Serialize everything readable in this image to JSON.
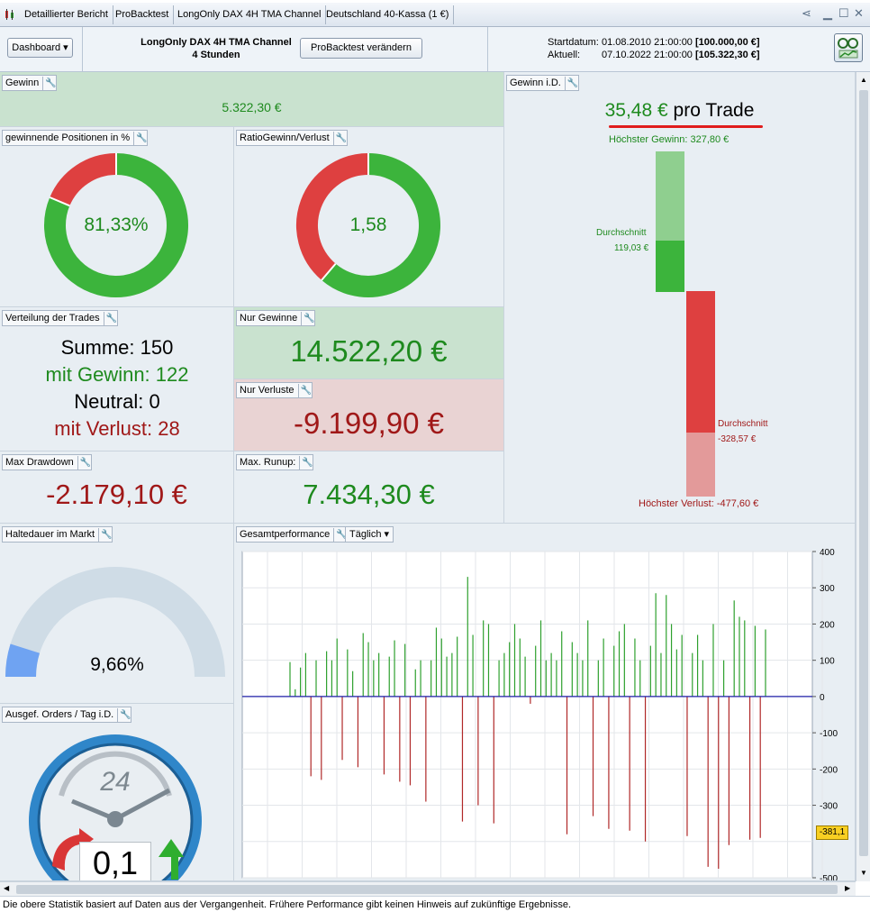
{
  "tabs": [
    "Detaillierter Bericht",
    "ProBacktest",
    "LongOnly DAX 4H TMA Channel",
    "Deutschland 40-Kassa (1 €)"
  ],
  "header": {
    "dashboard_label": "Dashboard",
    "strategy_name": "LongOnly DAX 4H TMA Channel",
    "timeframe": "4 Stunden",
    "modify_label": "ProBacktest verändern",
    "start_label": "Startdatum:",
    "start_date": "01.08.2010 21:00:00",
    "start_capital": "[100.000,00 €]",
    "current_label": "Aktuell:",
    "current_date": "07.10.2022 21:00:00",
    "current_capital": "[105.322,30 €]"
  },
  "gewinn": {
    "title": "Gewinn",
    "value": "5.322,30 €"
  },
  "win_pct": {
    "title": "gewinnende Positionen in %",
    "value": "81,33%",
    "fraction": 0.8133
  },
  "ratio": {
    "title": "RatioGewinn/Verlust",
    "value": "1,58",
    "fraction": 0.6124
  },
  "gewinn_id": {
    "title": "Gewinn i.D.",
    "per_trade_value": "35,48 €",
    "per_trade_label": "pro Trade",
    "max_gain": "Höchster Gewinn: 327,80 €",
    "avg_label": "Durchschnitt",
    "avg_gain": "119,03 €",
    "avg_loss": "-328,57 €",
    "max_loss": "Höchster Verlust: -477,60 €"
  },
  "verteilung": {
    "title": "Verteilung der Trades",
    "sum": "Summe: 150",
    "win": "mit Gewinn: 122",
    "neutral": "Neutral: 0",
    "loss": "mit Verlust: 28"
  },
  "nur_gewinne": {
    "title": "Nur Gewinne",
    "value": "14.522,20 €"
  },
  "nur_verluste": {
    "title": "Nur Verluste",
    "value": "-9.199,90 €"
  },
  "max_drawdown": {
    "title": "Max Drawdown",
    "value": "-2.179,10 €"
  },
  "max_runup": {
    "title": "Max. Runup:",
    "value": "7.434,30 €"
  },
  "haltedauer": {
    "title": "Haltedauer im Markt",
    "value": "9,66%",
    "fraction": 0.0966
  },
  "orders": {
    "title": "Ausgef. Orders / Tag i.D.",
    "value": "0,1",
    "dial_number": "24"
  },
  "performance": {
    "title": "Gesamtperformance",
    "period": "Täglich",
    "current_marker": "-381,1"
  },
  "chart_data": {
    "type": "bar",
    "title": "Gesamtperformance",
    "ylim": [
      -500,
      400
    ],
    "yticks": [
      400,
      300,
      200,
      100,
      0,
      -100,
      -200,
      -300,
      -500
    ],
    "ytick_labels": [
      "400",
      "300",
      "200",
      "100",
      "0",
      "-100",
      "-200",
      "-300",
      "-500"
    ],
    "values": [
      95,
      20,
      80,
      120,
      -220,
      100,
      -230,
      125,
      100,
      160,
      -175,
      130,
      70,
      -195,
      175,
      150,
      100,
      120,
      -215,
      110,
      155,
      -235,
      145,
      -245,
      75,
      100,
      -290,
      100,
      190,
      160,
      110,
      120,
      165,
      -345,
      330,
      170,
      -300,
      210,
      200,
      -350,
      100,
      120,
      150,
      200,
      160,
      110,
      -20,
      140,
      210,
      100,
      120,
      100,
      180,
      -380,
      150,
      120,
      100,
      210,
      -330,
      100,
      160,
      -365,
      140,
      180,
      200,
      -370,
      160,
      100,
      -400,
      140,
      285,
      120,
      280,
      200,
      130,
      170,
      -385,
      120,
      170,
      100,
      -470,
      200,
      -475,
      100,
      -410,
      265,
      220,
      210,
      -395,
      195,
      -390,
      185
    ],
    "grid": true,
    "colors": {
      "positive": "#2ea02e",
      "negative": "#b02828",
      "zero_line": "#1f1fa8"
    }
  },
  "footer": "Die obere Statistik basiert auf Daten aus der Vergangenheit. Frühere Performance gibt keinen Hinweis auf zukünftige Ergebnisse.",
  "colors": {
    "green": "#3cb43c",
    "red": "#de4040",
    "light_green": "#8fcf8f",
    "light_red": "#e39a9a",
    "gauge_fill": "#6fa3f2",
    "gauge_track": "#cfdce6"
  }
}
